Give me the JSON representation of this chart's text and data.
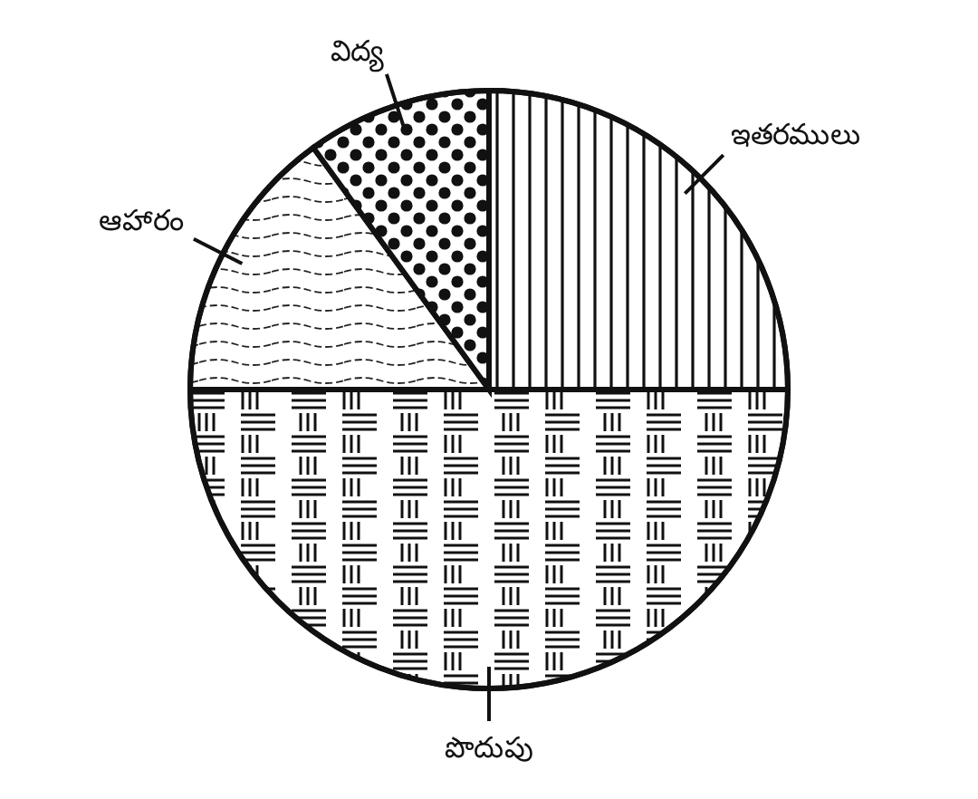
{
  "chart_data": {
    "type": "pie",
    "categories": [
      "ఇతరములు",
      "పొదుపు",
      "ఆహారం",
      "విద్య"
    ],
    "values": [
      25,
      50,
      15,
      10
    ]
  }
}
